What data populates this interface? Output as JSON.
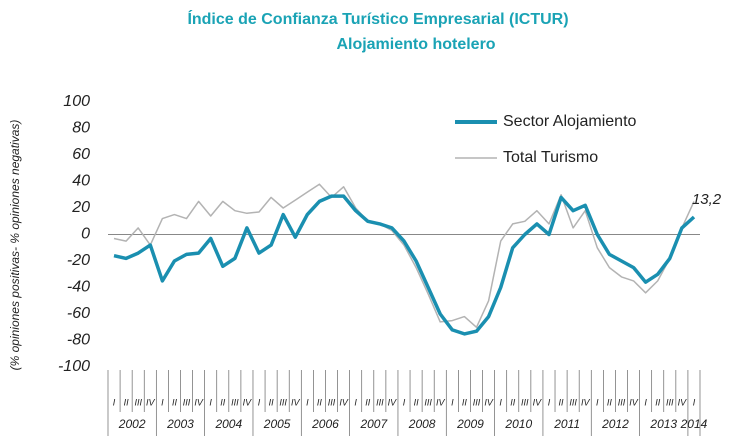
{
  "chart_data": {
    "type": "line",
    "title": "Índice de Confianza Turístico Empresarial (ICTUR)",
    "subtitle": "Alojamiento hotelero",
    "y_label": "(% opiniones positivas- % opiniones negativas)",
    "categories": [
      "I",
      "II",
      "III",
      "IV",
      "I",
      "II",
      "III",
      "IV",
      "I",
      "II",
      "III",
      "IV",
      "I",
      "II",
      "III",
      "IV",
      "I",
      "II",
      "III",
      "IV",
      "I",
      "II",
      "III",
      "IV",
      "I",
      "II",
      "III",
      "IV",
      "I",
      "II",
      "III",
      "IV",
      "I",
      "II",
      "III",
      "IV",
      "I",
      "II",
      "III",
      "IV",
      "I",
      "II",
      "III",
      "IV",
      "I",
      "II",
      "III",
      "IV",
      "I"
    ],
    "x_groups": [
      "2002",
      "2003",
      "2004",
      "2005",
      "2006",
      "2007",
      "2008",
      "2009",
      "2010",
      "2011",
      "2012",
      "2013",
      "2014"
    ],
    "series": [
      {
        "name": "Sector Alojamiento",
        "color": "#1a8fb0",
        "values": [
          -16,
          -18,
          -14,
          -8,
          -35,
          -20,
          -15,
          -14,
          -3,
          -24,
          -18,
          5,
          -14,
          -8,
          15,
          -2,
          15,
          25,
          29,
          29,
          18,
          10,
          8,
          5,
          -5,
          -20,
          -40,
          -60,
          -72,
          -75,
          -73,
          -62,
          -40,
          -10,
          0,
          8,
          0,
          28,
          18,
          22,
          0,
          -15,
          -20,
          -25,
          -36,
          -30,
          -18,
          5,
          13.2
        ],
        "value_labels": [
          null,
          null,
          null,
          null,
          null,
          null,
          null,
          null,
          null,
          null,
          null,
          null,
          null,
          null,
          null,
          null,
          null,
          null,
          null,
          null,
          null,
          null,
          null,
          null,
          null,
          null,
          null,
          null,
          null,
          null,
          null,
          null,
          null,
          null,
          null,
          null,
          null,
          null,
          null,
          null,
          null,
          null,
          null,
          null,
          null,
          null,
          null,
          null,
          "13,2"
        ]
      },
      {
        "name": "Total Turismo",
        "color": "#b3b3b3",
        "values": [
          -3,
          -5,
          5,
          -8,
          12,
          15,
          12,
          25,
          14,
          25,
          18,
          16,
          17,
          28,
          20,
          26,
          32,
          38,
          28,
          36,
          20,
          10,
          8,
          3,
          -8,
          -25,
          -45,
          -66,
          -65,
          -62,
          -70,
          -50,
          -5,
          8,
          10,
          18,
          8,
          30,
          5,
          18,
          -10,
          -25,
          -32,
          -35,
          -44,
          -35,
          -18,
          5,
          25
        ]
      }
    ],
    "ylim": [
      -100,
      100
    ],
    "yticks": [
      -100,
      -80,
      -60,
      -40,
      -20,
      0,
      20,
      40,
      60,
      80,
      100
    ],
    "legend": "top-right"
  }
}
